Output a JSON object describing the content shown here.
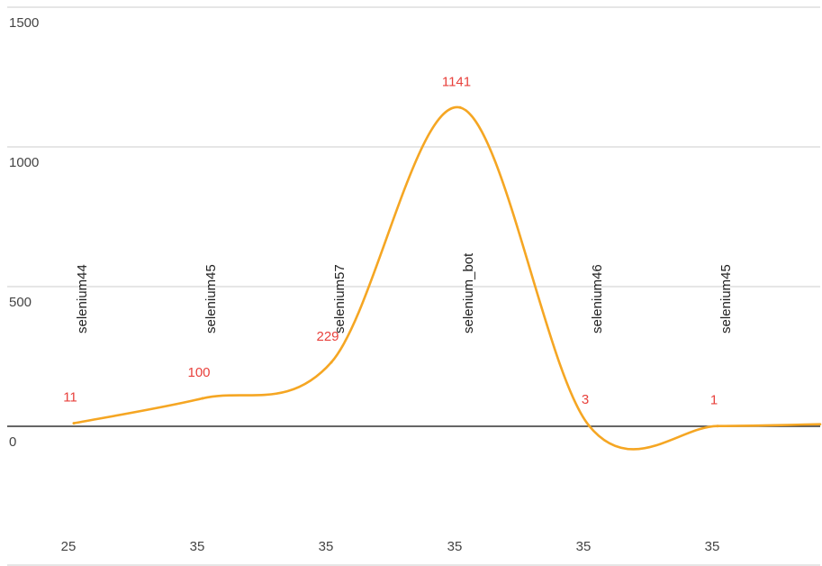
{
  "chart_data": {
    "type": "line",
    "title": "",
    "xlabel": "",
    "ylabel": "",
    "ylim": [
      -500,
      1500
    ],
    "y_ticks": [
      0,
      500,
      1000,
      1500
    ],
    "categories": [
      "25",
      "35",
      "35",
      "35",
      "35",
      "35"
    ],
    "annotations": [
      "selenium44",
      "selenium45",
      "selenium57",
      "selenium_bot",
      "selenium46",
      "selenium45"
    ],
    "series": [
      {
        "values": [
          11,
          100,
          229,
          1141,
          3,
          1
        ]
      }
    ],
    "grid": true,
    "legend": "none",
    "colors": {
      "line": "#f5a623",
      "data_label": "#e8413c",
      "grid": "#cccccc",
      "baseline": "#333333",
      "tick_text": "#444444",
      "annotation_text": "#222222"
    }
  }
}
